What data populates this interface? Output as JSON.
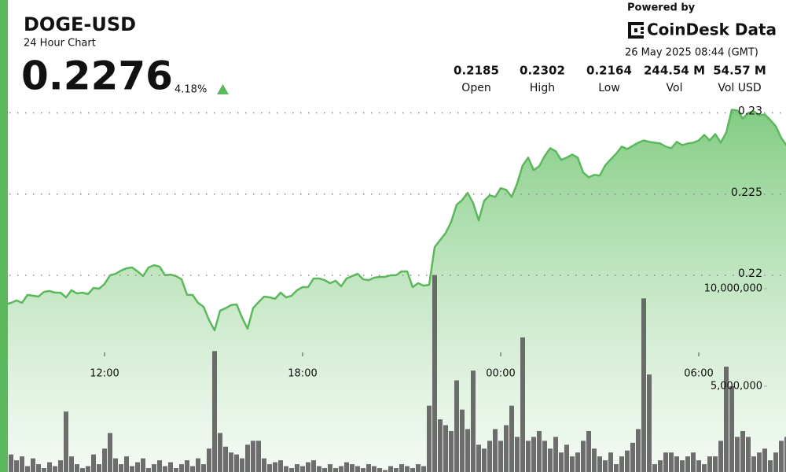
{
  "header": {
    "title": "DOGE-USD",
    "subtitle": "24 Hour Chart",
    "price": "0.2276",
    "change": "4.18%",
    "powered_by": "Powered by",
    "brand": "CoinDesk Data",
    "timestamp": "26 May 2025 08:44 (GMT)",
    "stats": [
      {
        "value": "0.2185",
        "label": "Open"
      },
      {
        "value": "0.2302",
        "label": "High"
      },
      {
        "value": "0.2164",
        "label": "Low"
      },
      {
        "value": "244.54 M",
        "label": "Vol"
      },
      {
        "value": "54.57 M",
        "label": "Vol USD"
      }
    ]
  },
  "chart_data": {
    "type": "line",
    "categories": [
      null,
      null,
      null,
      null,
      null,
      null,
      null,
      null,
      null,
      null,
      null,
      null,
      null,
      null,
      null,
      null,
      null,
      null,
      null,
      "12:00",
      null,
      null,
      null,
      null,
      null,
      null,
      null,
      null,
      null,
      null,
      null,
      null,
      null,
      null,
      null,
      null,
      null,
      null,
      null,
      null,
      null,
      null,
      null,
      null,
      null,
      null,
      null,
      null,
      null,
      null,
      null,
      null,
      null,
      null,
      null,
      "18:00",
      null,
      null,
      null,
      null,
      null,
      null,
      null,
      null,
      null,
      null,
      null,
      null,
      null,
      null,
      null,
      null,
      null,
      null,
      null,
      null,
      null,
      null,
      null,
      null,
      null,
      null,
      null,
      null,
      null,
      null,
      null,
      null,
      null,
      null,
      null,
      "00:00",
      null,
      null,
      null,
      null,
      null,
      null,
      null,
      null,
      null,
      null,
      null,
      null,
      null,
      null,
      null,
      null,
      null,
      null,
      null,
      null,
      null,
      null,
      null,
      null,
      null,
      null,
      null,
      null,
      null,
      null,
      null,
      null,
      null,
      null,
      null,
      "06:00",
      null,
      null,
      null,
      null,
      null,
      null,
      null,
      null,
      null,
      null,
      null,
      null,
      null,
      null,
      null,
      null
    ],
    "series": [
      {
        "color": "#5cb85c",
        "values": [
          0.21788,
          0.21812,
          0.21821,
          0.21836,
          0.21821,
          0.2187,
          0.21865,
          0.2186,
          0.21889,
          0.21894,
          0.21884,
          0.21884,
          0.21855,
          0.21899,
          0.21879,
          0.21884,
          0.21875,
          0.21913,
          0.21908,
          0.21937,
          0.21991,
          0.22,
          0.2202,
          0.22034,
          0.22039,
          0.22015,
          0.21986,
          0.22039,
          0.22053,
          0.22044,
          0.21991,
          0.21995,
          0.21986,
          0.21966,
          0.2187,
          0.2187,
          0.21821,
          0.21797,
          0.21715,
          0.21652,
          0.21773,
          0.21788,
          0.21807,
          0.21812,
          0.2173,
          0.21662,
          0.21788,
          0.21826,
          0.2186,
          0.21855,
          0.21846,
          0.21884,
          0.21855,
          0.21865,
          0.21899,
          0.21918,
          0.21918,
          0.21971,
          0.21971,
          0.21961,
          0.21942,
          0.21957,
          0.21923,
          0.21971,
          0.21986,
          0.22,
          0.21966,
          0.21961,
          0.21976,
          0.21981,
          0.21981,
          0.21991,
          0.21991,
          0.22015,
          0.22015,
          0.21918,
          0.21942,
          0.21927,
          0.21932,
          0.22164,
          0.22208,
          0.22251,
          0.22319,
          0.22425,
          0.22454,
          0.22498,
          0.22435,
          0.22329,
          0.22449,
          0.22483,
          0.22473,
          0.22527,
          0.22517,
          0.22473,
          0.22556,
          0.22667,
          0.22715,
          0.22638,
          0.22662,
          0.22725,
          0.22773,
          0.22754,
          0.22701,
          0.22715,
          0.22734,
          0.22715,
          0.22623,
          0.22594,
          0.22609,
          0.22604,
          0.22667,
          0.22705,
          0.22739,
          0.22783,
          0.22768,
          0.22788,
          0.22807,
          0.22821,
          0.22812,
          0.22807,
          0.22802,
          0.22783,
          0.22773,
          0.22812,
          0.22792,
          0.22802,
          0.22807,
          0.22821,
          0.22855,
          0.22821,
          0.2286,
          0.22807,
          0.2287,
          0.2301,
          0.23005,
          0.22956,
          0.2299,
          0.23,
          0.22976,
          0.22981,
          0.22947,
          0.22908,
          0.22836,
          0.22788
        ]
      },
      {
        "color": "#555555",
        "axis": "y2",
        "values": [
          1600000,
          1900000,
          1500000,
          1200000,
          1400000,
          900000,
          1300000,
          1000000,
          800000,
          1100000,
          900000,
          1200000,
          3700000,
          1400000,
          1000000,
          800000,
          900000,
          1500000,
          1000000,
          1800000,
          2600000,
          1300000,
          1000000,
          1400000,
          900000,
          1100000,
          1300000,
          800000,
          1000000,
          1200000,
          900000,
          1100000,
          800000,
          1000000,
          1200000,
          900000,
          1300000,
          1000000,
          1800000,
          6800000,
          2600000,
          1900000,
          1600000,
          1500000,
          1300000,
          2000000,
          2200000,
          2200000,
          1300000,
          1000000,
          1100000,
          1200000,
          900000,
          800000,
          1000000,
          900000,
          1100000,
          1200000,
          900000,
          800000,
          1000000,
          800000,
          900000,
          1100000,
          1000000,
          900000,
          800000,
          1000000,
          900000,
          800000,
          700000,
          900000,
          800000,
          1000000,
          900000,
          800000,
          1000000,
          900000,
          4000000,
          10700000,
          3300000,
          3000000,
          2700000,
          5300000,
          3800000,
          2800000,
          5800000,
          2000000,
          1800000,
          2200000,
          2800000,
          2200000,
          3000000,
          4000000,
          2400000,
          7500000,
          2200000,
          2400000,
          2700000,
          2200000,
          1800000,
          2400000,
          1600000,
          2000000,
          1400000,
          1600000,
          2200000,
          2700000,
          1800000,
          1400000,
          1200000,
          1600000,
          1000000,
          1400000,
          1700000,
          2100000,
          2800000,
          9500000,
          5600000,
          1000000,
          1200000,
          1600000,
          1600000,
          1400000,
          1200000,
          1400000,
          1600000,
          1200000,
          1000000,
          1400000,
          1400000,
          2200000,
          6000000,
          5000000,
          2400000,
          2700000,
          2400000,
          1400000,
          1600000,
          1800000,
          1200000,
          1600000,
          2200000,
          2400000
        ]
      }
    ],
    "ylim": [
      0.2078,
      0.2308
    ],
    "yticks": [
      0.22,
      0.225,
      0.23
    ],
    "y2lim": [
      600000,
      19760000
    ],
    "y2ticks": [
      {
        "value": 10000000,
        "label": "10,000,000"
      },
      {
        "value": 5000000,
        "label": "5,000,000"
      }
    ],
    "grid": true
  }
}
